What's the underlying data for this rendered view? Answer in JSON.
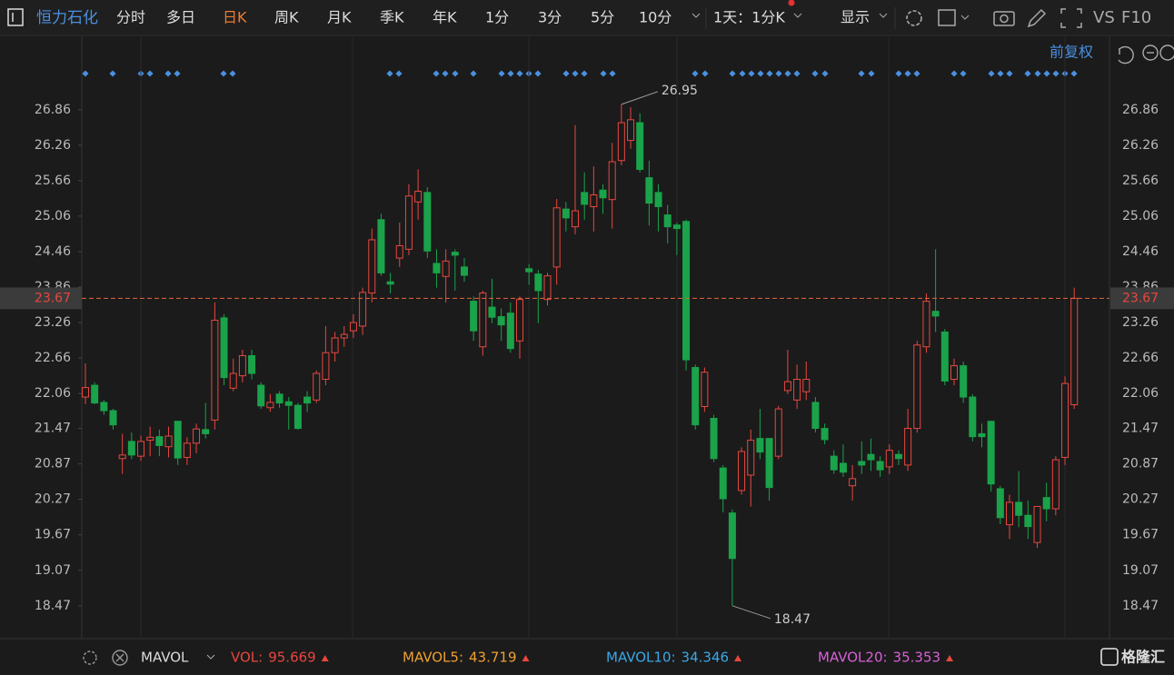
{
  "toolbar": {
    "title": "恒力石化",
    "tabs": [
      "分时",
      "多日",
      "日K",
      "周K",
      "月K",
      "季K",
      "年K",
      "1分",
      "3分",
      "5分",
      "10分"
    ],
    "active_tab_index": 2,
    "period": "1天：1分K",
    "display": "显示",
    "vs": "VS",
    "f10": "F10"
  },
  "adjust": "前复权",
  "chart_data": {
    "type": "candlestick",
    "up_color": "#e8473f",
    "down_color": "#1aa34a",
    "ylim": [
      17.96,
      28.07
    ],
    "yticks": [
      18.47,
      19.07,
      19.67,
      20.27,
      20.87,
      21.47,
      22.06,
      22.66,
      23.26,
      23.86,
      24.46,
      25.06,
      25.66,
      26.26,
      26.86
    ],
    "grid": false,
    "open": [
      22.0,
      22.2,
      21.91,
      21.77,
      20.96,
      21.25,
      21.0,
      21.27,
      21.33,
      21.16,
      21.59,
      20.98,
      21.22,
      21.45,
      21.61,
      23.34,
      22.15,
      22.36,
      22.7,
      22.2,
      21.82,
      22.05,
      21.92,
      21.86,
      22.0,
      21.95,
      22.3,
      22.75,
      23.0,
      23.12,
      23.2,
      23.76,
      25.0,
      23.95,
      24.35,
      24.5,
      25.3,
      25.46,
      24.26,
      24.04,
      24.45,
      24.2,
      23.62,
      22.85,
      23.52,
      23.36,
      23.42,
      22.95,
      24.17,
      24.08,
      23.65,
      24.2,
      25.18,
      24.88,
      25.46,
      25.22,
      25.5,
      25.34,
      26.0,
      26.34,
      26.64,
      25.71,
      25.46,
      25.08,
      24.91,
      24.97,
      22.5,
      21.84,
      21.64,
      20.8,
      20.04,
      20.42,
      20.68,
      21.3,
      21.3,
      21.0,
      22.11,
      21.95,
      22.09,
      21.91,
      21.47,
      21.0,
      20.88,
      20.5,
      20.91,
      21.03,
      20.91,
      20.82,
      21.03,
      20.85,
      21.47,
      22.85,
      23.45,
      23.1,
      22.3,
      22.53,
      22.0,
      21.38,
      21.59,
      20.45,
      19.84,
      20.22,
      20.0,
      19.54,
      20.3,
      20.11,
      20.98,
      21.87
    ],
    "high": [
      22.57,
      22.25,
      21.95,
      21.8,
      21.38,
      21.4,
      21.35,
      21.5,
      21.45,
      21.5,
      21.6,
      21.32,
      21.55,
      21.9,
      23.6,
      23.4,
      22.65,
      22.8,
      22.8,
      22.25,
      22.05,
      22.1,
      22.0,
      21.9,
      22.1,
      22.45,
      23.2,
      23.1,
      23.2,
      23.4,
      23.85,
      24.85,
      25.1,
      24.1,
      24.95,
      25.6,
      25.85,
      25.55,
      24.5,
      24.5,
      24.5,
      24.35,
      23.7,
      23.8,
      24.0,
      23.5,
      23.6,
      23.7,
      24.25,
      24.15,
      24.1,
      25.35,
      25.3,
      26.6,
      25.8,
      25.9,
      25.6,
      26.3,
      26.95,
      26.9,
      26.8,
      26.0,
      25.6,
      25.25,
      24.95,
      25.0,
      22.55,
      22.5,
      21.7,
      20.85,
      20.1,
      21.15,
      21.45,
      21.8,
      21.3,
      21.85,
      22.8,
      22.55,
      22.6,
      22.0,
      21.55,
      21.1,
      21.2,
      20.85,
      21.25,
      21.3,
      21.0,
      21.2,
      21.1,
      21.8,
      22.95,
      23.75,
      24.5,
      23.15,
      22.65,
      22.6,
      22.05,
      21.55,
      21.6,
      20.5,
      20.35,
      20.75,
      20.25,
      20.15,
      20.55,
      21.0,
      22.35,
      23.85
    ],
    "low": [
      21.88,
      21.88,
      21.7,
      21.45,
      20.7,
      20.95,
      20.92,
      21.0,
      21.0,
      20.98,
      20.85,
      20.85,
      21.05,
      21.3,
      21.45,
      22.2,
      22.1,
      22.25,
      22.3,
      21.8,
      21.75,
      21.82,
      21.45,
      21.45,
      21.75,
      21.9,
      22.2,
      22.6,
      22.85,
      23.0,
      23.05,
      23.6,
      24.05,
      23.75,
      24.2,
      24.4,
      25.0,
      24.35,
      23.85,
      23.6,
      23.8,
      23.95,
      22.95,
      22.7,
      23.25,
      22.95,
      22.75,
      22.65,
      23.9,
      23.25,
      23.55,
      23.9,
      24.8,
      24.75,
      25.0,
      24.8,
      25.1,
      24.85,
      25.92,
      26.2,
      25.8,
      24.9,
      24.8,
      24.6,
      24.4,
      22.45,
      21.45,
      21.75,
      20.9,
      20.05,
      18.47,
      20.35,
      20.15,
      20.95,
      20.25,
      20.95,
      22.05,
      21.8,
      21.95,
      21.4,
      21.2,
      20.7,
      20.65,
      20.25,
      20.7,
      20.75,
      20.65,
      20.7,
      20.85,
      20.75,
      21.4,
      22.75,
      23.1,
      22.2,
      22.2,
      21.9,
      21.25,
      21.15,
      20.4,
      19.85,
      19.6,
      19.8,
      19.6,
      19.45,
      19.9,
      20.0,
      20.85,
      21.8
    ],
    "close": [
      22.16,
      21.9,
      21.77,
      21.53,
      21.02,
      21.02,
      21.25,
      21.32,
      21.18,
      21.34,
      20.97,
      21.22,
      21.46,
      21.38,
      23.3,
      22.33,
      22.4,
      22.7,
      22.4,
      21.85,
      21.91,
      21.9,
      21.86,
      21.47,
      21.9,
      22.4,
      22.75,
      23.0,
      23.06,
      23.26,
      23.77,
      24.66,
      24.1,
      23.91,
      24.56,
      25.4,
      25.48,
      24.47,
      24.1,
      24.3,
      24.4,
      24.06,
      23.12,
      23.76,
      23.35,
      23.22,
      22.82,
      23.65,
      24.12,
      23.8,
      24.05,
      25.2,
      25.03,
      25.15,
      25.26,
      25.42,
      25.37,
      25.98,
      26.64,
      26.69,
      25.85,
      25.28,
      25.22,
      24.88,
      24.85,
      22.63,
      21.53,
      22.42,
      20.96,
      20.28,
      19.27,
      21.08,
      21.27,
      21.07,
      20.47,
      21.8,
      22.26,
      22.3,
      22.3,
      21.47,
      21.28,
      20.77,
      20.73,
      20.62,
      20.85,
      20.94,
      20.77,
      21.1,
      20.96,
      21.47,
      22.88,
      23.62,
      23.37,
      22.27,
      22.53,
      22.0,
      21.33,
      21.33,
      20.53,
      19.96,
      20.22,
      20.0,
      19.81,
      20.15,
      20.11,
      20.94,
      22.23,
      23.67
    ]
  },
  "indicator_bar": {
    "name": "MAVOL",
    "items": [
      {
        "label": "VOL:",
        "value": 95.669,
        "color": "#e8473f"
      },
      {
        "label": "MAVOL5:",
        "value": 43.719,
        "color": "#f0a030"
      },
      {
        "label": "MAVOL10:",
        "value": 34.346,
        "color": "#3aa8e8"
      },
      {
        "label": "MAVOL20:",
        "value": 35.353,
        "color": "#d860d8"
      }
    ]
  },
  "logo": "格隆汇"
}
